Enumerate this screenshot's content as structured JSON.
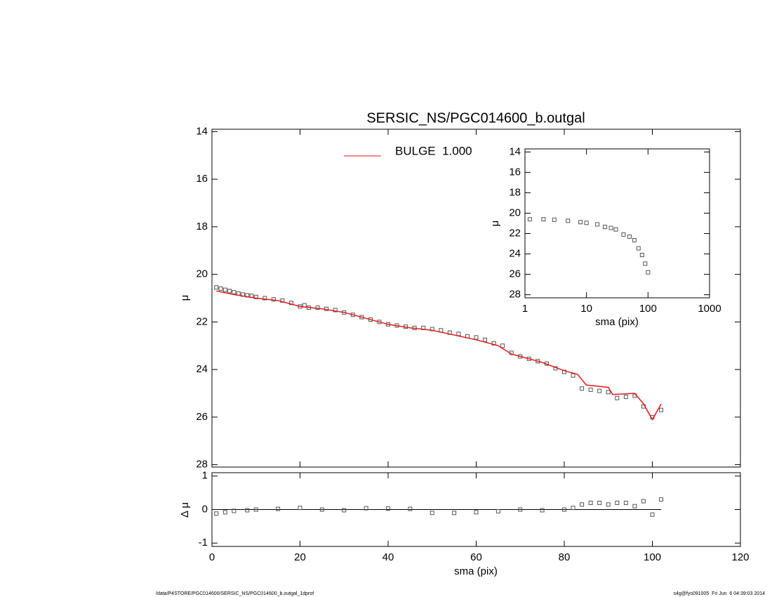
{
  "chart_data": [
    {
      "type": "scatter",
      "title": "SERSIC_NS/PGC014600_b.outgal",
      "y_label": "μ",
      "xlim": [
        0,
        120
      ],
      "xticks": [
        0,
        20,
        40,
        60,
        80,
        100,
        120
      ],
      "ylim": [
        28.1,
        13.9
      ],
      "yticks": [
        14,
        16,
        18,
        20,
        22,
        24,
        26,
        28
      ],
      "series": [
        {
          "marker": "square",
          "color": "#555555",
          "x": [
            1,
            2,
            3,
            4,
            5,
            6,
            7,
            8,
            9,
            10,
            12,
            14,
            16,
            18,
            20,
            21,
            22,
            24,
            26,
            28,
            30,
            32,
            34,
            36,
            38,
            40,
            42,
            44,
            46,
            48,
            50,
            52,
            54,
            56,
            58,
            60,
            62,
            64,
            66,
            68,
            70,
            72,
            74,
            76,
            78,
            80,
            82,
            84,
            86,
            88,
            90,
            92,
            94,
            96,
            98,
            100,
            102
          ],
          "values": [
            20.55,
            20.6,
            20.65,
            20.7,
            20.75,
            20.8,
            20.85,
            20.88,
            20.9,
            20.95,
            21.0,
            21.05,
            21.1,
            21.2,
            21.35,
            21.3,
            21.4,
            21.4,
            21.45,
            21.5,
            21.6,
            21.7,
            21.8,
            21.9,
            22.0,
            22.1,
            22.15,
            22.2,
            22.25,
            22.25,
            22.3,
            22.35,
            22.45,
            22.5,
            22.6,
            22.65,
            22.75,
            22.9,
            23.0,
            23.3,
            23.45,
            23.55,
            23.65,
            23.75,
            23.95,
            24.1,
            24.25,
            24.8,
            24.85,
            24.9,
            24.95,
            25.2,
            25.15,
            25.1,
            25.55,
            26.0,
            25.7
          ]
        },
        {
          "marker": "line",
          "name": "BULGE  1.000",
          "color": "#e31a1c",
          "x": [
            1,
            5,
            10,
            15,
            20,
            25,
            30,
            35,
            40,
            45,
            50,
            55,
            60,
            65,
            68,
            70,
            75,
            80,
            83,
            85,
            90,
            91,
            96,
            98,
            100,
            102
          ],
          "values": [
            20.7,
            20.85,
            21.0,
            21.1,
            21.35,
            21.45,
            21.6,
            21.85,
            22.1,
            22.25,
            22.35,
            22.55,
            22.75,
            23.0,
            23.35,
            23.45,
            23.7,
            24.05,
            24.2,
            24.65,
            24.75,
            25.05,
            25.0,
            25.45,
            26.1,
            25.45
          ]
        }
      ]
    },
    {
      "type": "scatter",
      "x_label": "sma (pix)",
      "y_label": "μ",
      "log_x": true,
      "xlim": [
        1,
        1000
      ],
      "xticks": [
        1,
        10,
        100,
        1000
      ],
      "ylim": [
        28.3,
        13.7
      ],
      "yticks": [
        14,
        16,
        18,
        20,
        22,
        24,
        26,
        28
      ],
      "series": [
        {
          "marker": "square",
          "color": "#555555",
          "x": [
            1.2,
            2,
            3,
            5,
            8,
            10,
            15,
            20,
            25,
            30,
            40,
            50,
            60,
            70,
            80,
            90,
            100
          ],
          "values": [
            20.6,
            20.6,
            20.65,
            20.75,
            20.88,
            20.95,
            21.1,
            21.35,
            21.45,
            21.6,
            22.1,
            22.3,
            22.65,
            23.45,
            24.1,
            24.95,
            25.8
          ]
        }
      ]
    },
    {
      "type": "scatter",
      "x_label": "sma (pix)",
      "y_label": "Δ μ",
      "xlim": [
        0,
        120
      ],
      "xticks": [
        0,
        20,
        40,
        60,
        80,
        100,
        120
      ],
      "ylim": [
        -1.1,
        1.1
      ],
      "yticks": [
        -1,
        0,
        1
      ],
      "series": [
        {
          "marker": "square",
          "color": "#555555",
          "x": [
            1,
            3,
            5,
            8,
            10,
            15,
            20,
            25,
            30,
            35,
            40,
            45,
            50,
            55,
            60,
            65,
            70,
            75,
            80,
            82,
            84,
            86,
            88,
            90,
            92,
            94,
            96,
            98,
            100,
            102
          ],
          "values": [
            -0.12,
            -0.08,
            -0.04,
            -0.02,
            0,
            0.02,
            0.05,
            0,
            -0.02,
            0.04,
            0.03,
            0.02,
            -0.1,
            -0.1,
            -0.08,
            -0.05,
            0,
            -0.02,
            0,
            0.05,
            0.15,
            0.2,
            0.2,
            0.15,
            0.2,
            0.2,
            0.1,
            0.25,
            -0.15,
            0.3
          ]
        }
      ]
    }
  ],
  "footer": {
    "left": "/data/P4STORE/PGC014600/SERSIC_NS/PGC014600_b.outgal_1dprof",
    "right": "s4g@fys091005  Fri Jun  6 04:39:03 2014"
  }
}
